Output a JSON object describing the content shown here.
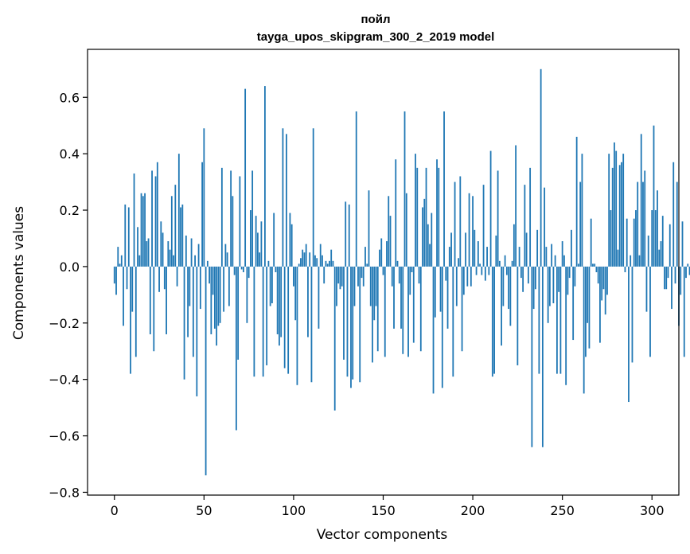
{
  "chart_data": {
    "type": "bar",
    "title_line1": "пойл",
    "title_line2": "tayga_upos_skipgram_300_2_2019 model",
    "xlabel": "Vector components",
    "ylabel": "Components values",
    "xlim": [
      -15,
      315
    ],
    "ylim": [
      -0.81,
      0.77
    ],
    "bar_color": "#1f77b4",
    "x_ticks": [
      {
        "value": 0,
        "label": "0"
      },
      {
        "value": 50,
        "label": "50"
      },
      {
        "value": 100,
        "label": "100"
      },
      {
        "value": 150,
        "label": "150"
      },
      {
        "value": 200,
        "label": "200"
      },
      {
        "value": 250,
        "label": "250"
      },
      {
        "value": 300,
        "label": "300"
      }
    ],
    "y_ticks": [
      {
        "value": -0.8,
        "label": "−0.8"
      },
      {
        "value": -0.6,
        "label": "−0.6"
      },
      {
        "value": -0.4,
        "label": "−0.4"
      },
      {
        "value": -0.2,
        "label": "−0.2"
      },
      {
        "value": 0.0,
        "label": "0.0"
      },
      {
        "value": 0.2,
        "label": "0.2"
      },
      {
        "value": 0.4,
        "label": "0.4"
      },
      {
        "value": 0.6,
        "label": "0.6"
      }
    ],
    "values": [
      -0.06,
      -0.1,
      0.07,
      0.01,
      0.04,
      -0.21,
      0.22,
      -0.08,
      0.21,
      -0.38,
      -0.16,
      0.33,
      -0.32,
      0.14,
      0.04,
      0.26,
      0.25,
      0.26,
      0.09,
      0.1,
      -0.24,
      0.34,
      -0.3,
      0.32,
      0.37,
      -0.09,
      0.16,
      0.12,
      -0.08,
      -0.24,
      0.09,
      0.06,
      0.25,
      0.04,
      0.29,
      -0.07,
      0.4,
      0.21,
      0.22,
      -0.4,
      0.11,
      -0.25,
      -0.14,
      0.1,
      -0.32,
      0.04,
      -0.46,
      0.08,
      -0.15,
      0.37,
      0.49,
      -0.74,
      0.02,
      -0.06,
      -0.24,
      -0.1,
      -0.22,
      -0.28,
      -0.21,
      -0.2,
      0.35,
      -0.16,
      0.08,
      0.05,
      -0.14,
      0.34,
      0.25,
      -0.03,
      -0.58,
      -0.33,
      0.32,
      -0.01,
      -0.02,
      0.63,
      -0.2,
      -0.04,
      0.2,
      0.34,
      -0.39,
      0.18,
      0.12,
      0.05,
      0.16,
      -0.39,
      0.64,
      -0.35,
      0.02,
      -0.14,
      -0.13,
      0.19,
      -0.02,
      -0.24,
      -0.28,
      -0.25,
      0.49,
      -0.36,
      0.47,
      -0.38,
      0.19,
      0.15,
      -0.07,
      -0.19,
      -0.42,
      0.01,
      0.03,
      0.06,
      0.05,
      0.08,
      -0.25,
      0.05,
      -0.41,
      0.49,
      0.04,
      0.03,
      -0.22,
      0.08,
      0.04,
      -0.06,
      0.02,
      0.01,
      0.02,
      0.06,
      0.02,
      -0.51,
      -0.14,
      -0.06,
      -0.08,
      -0.07,
      -0.33,
      0.23,
      -0.39,
      0.22,
      -0.43,
      -0.4,
      -0.14,
      0.55,
      -0.07,
      -0.41,
      -0.04,
      -0.07,
      0.07,
      0.01,
      0.27,
      -0.14,
      -0.34,
      -0.19,
      -0.14,
      -0.3,
      0.06,
      0.1,
      -0.03,
      -0.32,
      0.09,
      0.25,
      0.18,
      -0.07,
      -0.22,
      0.38,
      0.02,
      -0.06,
      -0.22,
      -0.31,
      0.55,
      0.26,
      -0.32,
      -0.1,
      -0.02,
      -0.27,
      0.4,
      0.35,
      -0.06,
      -0.3,
      0.21,
      0.24,
      0.35,
      0.15,
      0.08,
      0.19,
      -0.45,
      -0.18,
      0.38,
      0.35,
      -0.16,
      -0.43,
      0.55,
      -0.05,
      -0.22,
      0.07,
      0.12,
      -0.39,
      0.3,
      -0.14,
      0.03,
      0.32,
      -0.3,
      -0.1,
      0.12,
      -0.07,
      0.26,
      -0.07,
      0.25,
      0.13,
      -0.03,
      0.09,
      0.01,
      -0.03,
      0.29,
      -0.05,
      0.07,
      -0.03,
      0.41,
      -0.39,
      -0.38,
      0.11,
      0.34,
      0.02,
      -0.28,
      -0.14,
      0.04,
      -0.03,
      -0.15,
      -0.21,
      0.02,
      0.15,
      0.43,
      -0.35,
      0.07,
      -0.04,
      -0.09,
      0.29,
      0.12,
      -0.06,
      0.35,
      -0.64,
      -0.15,
      -0.08,
      0.13,
      -0.38,
      0.7,
      -0.64,
      0.28,
      0.07,
      -0.2,
      -0.14,
      0.08,
      -0.13,
      0.04,
      -0.38,
      -0.09,
      -0.38,
      0.09,
      0.04,
      -0.42,
      -0.1,
      -0.04,
      0.13,
      -0.26,
      -0.07,
      0.46,
      0.01,
      0.3,
      0.4,
      -0.45,
      -0.32,
      -0.2,
      -0.29,
      0.17,
      0.01,
      0.01,
      -0.02,
      -0.06,
      -0.27,
      -0.12,
      -0.08,
      -0.17,
      -0.1,
      0.4,
      0.2,
      0.35,
      0.44,
      0.41,
      0.06,
      0.36,
      0.37,
      0.4,
      -0.02,
      0.17,
      -0.48,
      0.04,
      -0.34,
      0.17,
      0.2,
      0.3,
      0.04,
      0.47,
      0.3,
      0.34,
      -0.16,
      0.11,
      -0.32,
      0.2,
      0.5,
      0.2,
      0.27,
      0.06,
      0.09,
      0.18,
      -0.08,
      -0.08,
      -0.04,
      0.15,
      -0.15,
      0.37,
      -0.06,
      0.3,
      -0.21,
      -0.1,
      0.16,
      -0.32,
      -0.04,
      0.01,
      -0.03
    ]
  }
}
